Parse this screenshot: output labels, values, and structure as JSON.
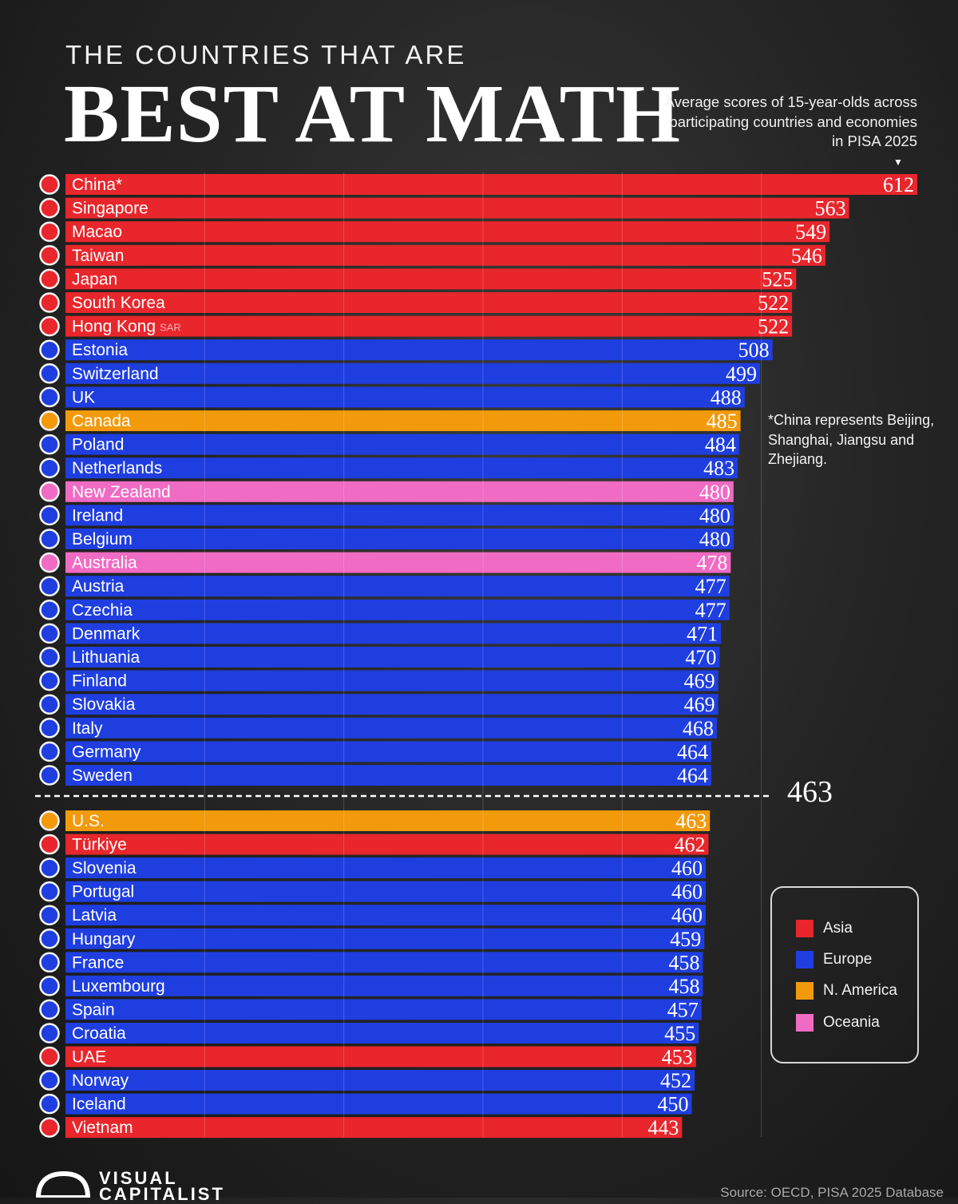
{
  "header": {
    "pre_title": "THE COUNTRIES THAT ARE",
    "main_title": "BEST AT MATH",
    "subtitle": "Average scores of 15-year-olds across participating countries and economies in PISA 2025"
  },
  "footnote": "*China represents Beijing, Shanghai, Jiangsu and Zhejiang.",
  "average": {
    "value": "463"
  },
  "legend": [
    {
      "label": "Asia",
      "color": "#e8262c"
    },
    {
      "label": "Europe",
      "color": "#1f3ee0"
    },
    {
      "label": "N. America",
      "color": "#f29a0c"
    },
    {
      "label": "Oceania",
      "color": "#f06bc4"
    }
  ],
  "logo": {
    "text": "VISUAL CAPITALIST"
  },
  "source": "Source: OECD, PISA 2025 Database",
  "chart_data": {
    "type": "bar",
    "orientation": "horizontal",
    "categories": [
      "China*",
      "Singapore",
      "Macao",
      "Taiwan",
      "Japan",
      "South Korea",
      "Hong Kong",
      "Estonia",
      "Switzerland",
      "UK",
      "Canada",
      "Poland",
      "Netherlands",
      "New Zealand",
      "Ireland",
      "Belgium",
      "Australia",
      "Austria",
      "Czechia",
      "Denmark",
      "Lithuania",
      "Finland",
      "Slovakia",
      "Italy",
      "Germany",
      "Sweden",
      "U.S.",
      "Türkiye",
      "Slovenia",
      "Portugal",
      "Latvia",
      "Hungary",
      "France",
      "Luxembourg",
      "Spain",
      "Croatia",
      "UAE",
      "Norway",
      "Iceland",
      "Vietnam"
    ],
    "category_suffix": {
      "Hong Kong": "SAR"
    },
    "values": [
      612,
      563,
      549,
      546,
      525,
      522,
      522,
      508,
      499,
      488,
      485,
      484,
      483,
      480,
      480,
      480,
      478,
      477,
      477,
      471,
      470,
      469,
      469,
      468,
      464,
      464,
      463,
      462,
      460,
      460,
      460,
      459,
      458,
      458,
      457,
      455,
      453,
      452,
      450,
      443
    ],
    "regions": [
      "Asia",
      "Asia",
      "Asia",
      "Asia",
      "Asia",
      "Asia",
      "Asia",
      "Europe",
      "Europe",
      "Europe",
      "N. America",
      "Europe",
      "Europe",
      "Oceania",
      "Europe",
      "Europe",
      "Oceania",
      "Europe",
      "Europe",
      "Europe",
      "Europe",
      "Europe",
      "Europe",
      "Europe",
      "Europe",
      "Europe",
      "N. America",
      "Asia",
      "Europe",
      "Europe",
      "Europe",
      "Europe",
      "Europe",
      "Europe",
      "Europe",
      "Europe",
      "Asia",
      "Europe",
      "Europe",
      "Asia"
    ],
    "reference_line": {
      "value": 463
    },
    "xlim": [
      0,
      612
    ],
    "grid": true
  }
}
